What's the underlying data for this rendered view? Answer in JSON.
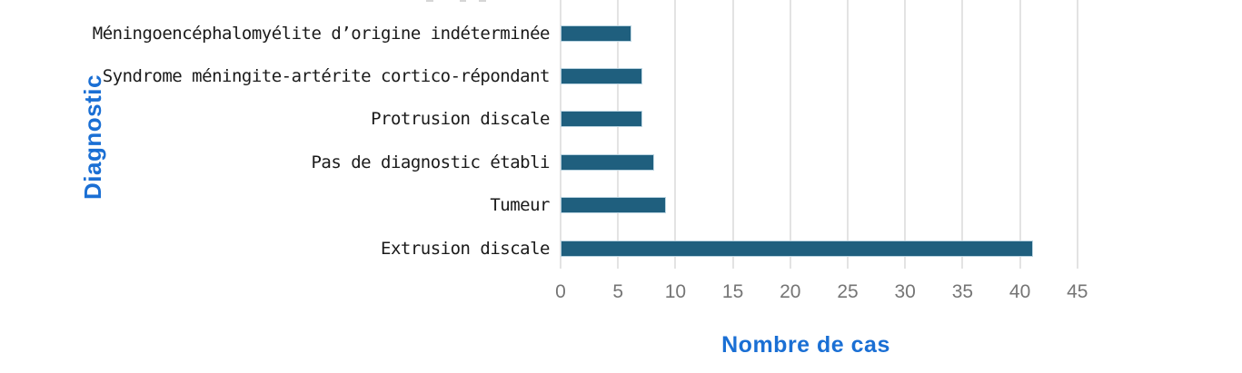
{
  "chart_data": {
    "type": "bar",
    "orientation": "horizontal",
    "categories": [
      "Méningoencéphalomyélite d’origine indéterminée",
      "Syndrome méningite-artérite cortico-répondant",
      "Protrusion discale",
      "Pas de diagnostic établi",
      "Tumeur",
      "Extrusion discale"
    ],
    "values": [
      6,
      7,
      7,
      8,
      9,
      41
    ],
    "xlabel": "Nombre de cas",
    "ylabel": "Diagnostic",
    "xticks": [
      0,
      5,
      10,
      15,
      20,
      25,
      30,
      35,
      40,
      45
    ],
    "xlim": [
      0,
      45.7
    ],
    "grid": "vertical-gridlines-on",
    "legend": "none",
    "title_cropped_out_of_frame": true,
    "colors": {
      "bar_fill": "#1f5f7e",
      "bar_edge": "#bad4e1",
      "gridline": "#e3e3e3",
      "tick_label": "#757575",
      "axis_title": "#1a6fd4",
      "category_label": "#1a1a1a",
      "background": "#ffffff"
    }
  }
}
